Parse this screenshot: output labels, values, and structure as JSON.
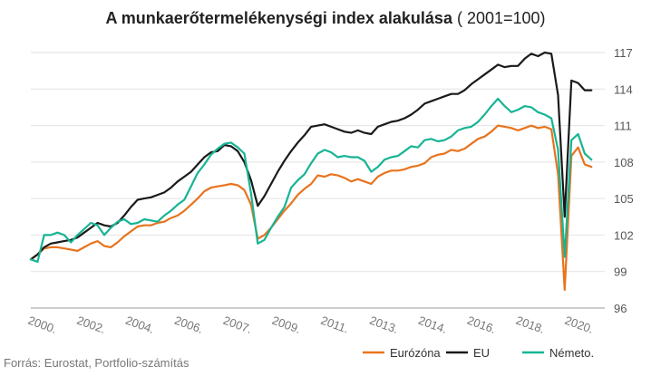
{
  "title_bold": "A munkaerőtermelékenységi index alakulása",
  "title_rest": " ( 2001=100)",
  "source": "Forrás: Eurostat, Portfolio-számítás",
  "chart_data": {
    "type": "line",
    "title": "A munkaerőtermelékenységi index alakulása ( 2001=100)",
    "xlabel": "",
    "ylabel": "",
    "ylim": [
      96,
      117
    ],
    "yticks": [
      96,
      99,
      102,
      105,
      108,
      111,
      114,
      117
    ],
    "xlim": [
      2000.0,
      2021.5
    ],
    "xtick_labels": [
      "2000.",
      "2002.",
      "2004.",
      "2006.",
      "2007.",
      "2009.",
      "2011.",
      "2013.",
      "2014.",
      "2016.",
      "2018.",
      "2020."
    ],
    "grid": true,
    "legend_position": "bottom-right",
    "series": [
      {
        "name": "Eurózóna",
        "color": "#e8731e",
        "points": [
          [
            2000.0,
            100.0
          ],
          [
            2000.25,
            100.4
          ],
          [
            2000.5,
            100.9
          ],
          [
            2000.75,
            101.0
          ],
          [
            2001.0,
            101.0
          ],
          [
            2001.25,
            100.9
          ],
          [
            2001.5,
            100.8
          ],
          [
            2001.75,
            100.7
          ],
          [
            2002.0,
            101.0
          ],
          [
            2002.25,
            101.3
          ],
          [
            2002.5,
            101.5
          ],
          [
            2002.75,
            101.1
          ],
          [
            2003.0,
            101.0
          ],
          [
            2003.25,
            101.4
          ],
          [
            2003.5,
            101.9
          ],
          [
            2003.75,
            102.3
          ],
          [
            2004.0,
            102.7
          ],
          [
            2004.25,
            102.8
          ],
          [
            2004.5,
            102.8
          ],
          [
            2004.75,
            103.0
          ],
          [
            2005.0,
            103.1
          ],
          [
            2005.25,
            103.4
          ],
          [
            2005.5,
            103.6
          ],
          [
            2005.75,
            104.0
          ],
          [
            2006.0,
            104.5
          ],
          [
            2006.25,
            105.0
          ],
          [
            2006.5,
            105.6
          ],
          [
            2006.75,
            105.9
          ],
          [
            2007.0,
            106.0
          ],
          [
            2007.25,
            106.1
          ],
          [
            2007.5,
            106.2
          ],
          [
            2007.75,
            106.1
          ],
          [
            2008.0,
            105.7
          ],
          [
            2008.25,
            104.5
          ],
          [
            2008.5,
            101.7
          ],
          [
            2008.75,
            102.0
          ],
          [
            2009.0,
            102.6
          ],
          [
            2009.25,
            103.3
          ],
          [
            2009.5,
            104.0
          ],
          [
            2009.75,
            104.6
          ],
          [
            2010.0,
            105.3
          ],
          [
            2010.25,
            105.8
          ],
          [
            2010.5,
            106.2
          ],
          [
            2010.75,
            106.9
          ],
          [
            2011.0,
            106.8
          ],
          [
            2011.25,
            107.0
          ],
          [
            2011.5,
            106.9
          ],
          [
            2011.75,
            106.7
          ],
          [
            2012.0,
            106.4
          ],
          [
            2012.25,
            106.6
          ],
          [
            2012.5,
            106.4
          ],
          [
            2012.75,
            106.2
          ],
          [
            2013.0,
            106.8
          ],
          [
            2013.25,
            107.1
          ],
          [
            2013.5,
            107.3
          ],
          [
            2013.75,
            107.3
          ],
          [
            2014.0,
            107.4
          ],
          [
            2014.25,
            107.6
          ],
          [
            2014.5,
            107.7
          ],
          [
            2014.75,
            107.9
          ],
          [
            2015.0,
            108.4
          ],
          [
            2015.25,
            108.6
          ],
          [
            2015.5,
            108.7
          ],
          [
            2015.75,
            109.0
          ],
          [
            2016.0,
            108.9
          ],
          [
            2016.25,
            109.1
          ],
          [
            2016.5,
            109.5
          ],
          [
            2016.75,
            109.9
          ],
          [
            2017.0,
            110.1
          ],
          [
            2017.25,
            110.5
          ],
          [
            2017.5,
            111.0
          ],
          [
            2017.75,
            110.9
          ],
          [
            2018.0,
            110.8
          ],
          [
            2018.25,
            110.6
          ],
          [
            2018.5,
            110.8
          ],
          [
            2018.75,
            111.0
          ],
          [
            2019.0,
            110.8
          ],
          [
            2019.25,
            110.9
          ],
          [
            2019.5,
            110.7
          ],
          [
            2019.75,
            107.0
          ],
          [
            2020.0,
            97.5
          ],
          [
            2020.25,
            108.5
          ],
          [
            2020.5,
            109.2
          ],
          [
            2020.75,
            107.8
          ],
          [
            2021.0,
            107.6
          ]
        ]
      },
      {
        "name": "EU",
        "color": "#1a1a1a",
        "points": [
          [
            2000.0,
            100.0
          ],
          [
            2000.25,
            100.4
          ],
          [
            2000.5,
            101.0
          ],
          [
            2000.75,
            101.3
          ],
          [
            2001.0,
            101.4
          ],
          [
            2001.25,
            101.5
          ],
          [
            2001.5,
            101.6
          ],
          [
            2001.75,
            101.8
          ],
          [
            2002.0,
            102.2
          ],
          [
            2002.25,
            102.6
          ],
          [
            2002.5,
            103.0
          ],
          [
            2002.75,
            102.8
          ],
          [
            2003.0,
            102.7
          ],
          [
            2003.25,
            103.0
          ],
          [
            2003.5,
            103.6
          ],
          [
            2003.75,
            104.3
          ],
          [
            2004.0,
            104.9
          ],
          [
            2004.25,
            105.0
          ],
          [
            2004.5,
            105.1
          ],
          [
            2004.75,
            105.3
          ],
          [
            2005.0,
            105.5
          ],
          [
            2005.25,
            105.9
          ],
          [
            2005.5,
            106.4
          ],
          [
            2005.75,
            106.8
          ],
          [
            2006.0,
            107.2
          ],
          [
            2006.25,
            107.8
          ],
          [
            2006.5,
            108.4
          ],
          [
            2006.75,
            108.8
          ],
          [
            2007.0,
            108.9
          ],
          [
            2007.25,
            109.4
          ],
          [
            2007.5,
            109.3
          ],
          [
            2007.75,
            108.9
          ],
          [
            2008.0,
            108.0
          ],
          [
            2008.25,
            106.5
          ],
          [
            2008.5,
            104.4
          ],
          [
            2008.75,
            105.2
          ],
          [
            2009.0,
            106.2
          ],
          [
            2009.25,
            107.2
          ],
          [
            2009.5,
            108.1
          ],
          [
            2009.75,
            108.9
          ],
          [
            2010.0,
            109.6
          ],
          [
            2010.25,
            110.2
          ],
          [
            2010.5,
            110.9
          ],
          [
            2010.75,
            111.0
          ],
          [
            2011.0,
            111.1
          ],
          [
            2011.25,
            110.9
          ],
          [
            2011.5,
            110.7
          ],
          [
            2011.75,
            110.5
          ],
          [
            2012.0,
            110.4
          ],
          [
            2012.25,
            110.6
          ],
          [
            2012.5,
            110.4
          ],
          [
            2012.75,
            110.3
          ],
          [
            2013.0,
            110.9
          ],
          [
            2013.25,
            111.1
          ],
          [
            2013.5,
            111.3
          ],
          [
            2013.75,
            111.4
          ],
          [
            2014.0,
            111.6
          ],
          [
            2014.25,
            111.9
          ],
          [
            2014.5,
            112.3
          ],
          [
            2014.75,
            112.8
          ],
          [
            2015.0,
            113.0
          ],
          [
            2015.25,
            113.2
          ],
          [
            2015.5,
            113.4
          ],
          [
            2015.75,
            113.6
          ],
          [
            2016.0,
            113.6
          ],
          [
            2016.25,
            113.9
          ],
          [
            2016.5,
            114.4
          ],
          [
            2016.75,
            114.8
          ],
          [
            2017.0,
            115.2
          ],
          [
            2017.25,
            115.6
          ],
          [
            2017.5,
            116.0
          ],
          [
            2017.75,
            115.8
          ],
          [
            2018.0,
            115.9
          ],
          [
            2018.25,
            115.9
          ],
          [
            2018.5,
            116.5
          ],
          [
            2018.75,
            116.9
          ],
          [
            2019.0,
            116.7
          ],
          [
            2019.25,
            117.0
          ],
          [
            2019.5,
            116.9
          ],
          [
            2019.75,
            113.5
          ],
          [
            2020.0,
            103.5
          ],
          [
            2020.25,
            114.7
          ],
          [
            2020.5,
            114.5
          ],
          [
            2020.75,
            113.9
          ],
          [
            2021.0,
            113.9
          ]
        ]
      },
      {
        "name": "Németo.",
        "color": "#17b494",
        "points": [
          [
            2000.0,
            100.0
          ],
          [
            2000.25,
            99.8
          ],
          [
            2000.5,
            102.0
          ],
          [
            2000.75,
            102.0
          ],
          [
            2001.0,
            102.2
          ],
          [
            2001.25,
            102.0
          ],
          [
            2001.5,
            101.4
          ],
          [
            2001.75,
            102.0
          ],
          [
            2002.0,
            102.5
          ],
          [
            2002.25,
            103.0
          ],
          [
            2002.5,
            102.8
          ],
          [
            2002.75,
            102.0
          ],
          [
            2003.0,
            102.6
          ],
          [
            2003.25,
            103.1
          ],
          [
            2003.5,
            103.3
          ],
          [
            2003.75,
            102.9
          ],
          [
            2004.0,
            103.0
          ],
          [
            2004.25,
            103.3
          ],
          [
            2004.5,
            103.2
          ],
          [
            2004.75,
            103.1
          ],
          [
            2005.0,
            103.6
          ],
          [
            2005.25,
            104.0
          ],
          [
            2005.5,
            104.5
          ],
          [
            2005.75,
            104.9
          ],
          [
            2006.0,
            106.0
          ],
          [
            2006.25,
            107.1
          ],
          [
            2006.5,
            107.8
          ],
          [
            2006.75,
            108.6
          ],
          [
            2007.0,
            109.1
          ],
          [
            2007.25,
            109.5
          ],
          [
            2007.5,
            109.6
          ],
          [
            2007.75,
            109.2
          ],
          [
            2008.0,
            108.7
          ],
          [
            2008.25,
            105.4
          ],
          [
            2008.5,
            101.3
          ],
          [
            2008.75,
            101.6
          ],
          [
            2009.0,
            102.6
          ],
          [
            2009.25,
            103.5
          ],
          [
            2009.5,
            104.3
          ],
          [
            2009.75,
            105.9
          ],
          [
            2010.0,
            106.5
          ],
          [
            2010.25,
            107.0
          ],
          [
            2010.5,
            107.9
          ],
          [
            2010.75,
            108.7
          ],
          [
            2011.0,
            109.0
          ],
          [
            2011.25,
            108.8
          ],
          [
            2011.5,
            108.4
          ],
          [
            2011.75,
            108.5
          ],
          [
            2012.0,
            108.4
          ],
          [
            2012.25,
            108.4
          ],
          [
            2012.5,
            108.1
          ],
          [
            2012.75,
            107.2
          ],
          [
            2013.0,
            107.6
          ],
          [
            2013.25,
            108.2
          ],
          [
            2013.5,
            108.4
          ],
          [
            2013.75,
            108.5
          ],
          [
            2014.0,
            108.9
          ],
          [
            2014.25,
            109.3
          ],
          [
            2014.5,
            109.2
          ],
          [
            2014.75,
            109.8
          ],
          [
            2015.0,
            109.9
          ],
          [
            2015.25,
            109.7
          ],
          [
            2015.5,
            109.8
          ],
          [
            2015.75,
            110.1
          ],
          [
            2016.0,
            110.6
          ],
          [
            2016.25,
            110.8
          ],
          [
            2016.5,
            110.9
          ],
          [
            2016.75,
            111.3
          ],
          [
            2017.0,
            111.9
          ],
          [
            2017.25,
            112.6
          ],
          [
            2017.5,
            113.2
          ],
          [
            2017.75,
            112.6
          ],
          [
            2018.0,
            112.1
          ],
          [
            2018.25,
            112.3
          ],
          [
            2018.5,
            112.6
          ],
          [
            2018.75,
            112.5
          ],
          [
            2019.0,
            112.1
          ],
          [
            2019.25,
            111.9
          ],
          [
            2019.5,
            111.6
          ],
          [
            2019.75,
            109.0
          ],
          [
            2020.0,
            100.2
          ],
          [
            2020.25,
            109.8
          ],
          [
            2020.5,
            110.3
          ],
          [
            2020.75,
            108.7
          ],
          [
            2021.0,
            108.2
          ]
        ]
      }
    ]
  }
}
